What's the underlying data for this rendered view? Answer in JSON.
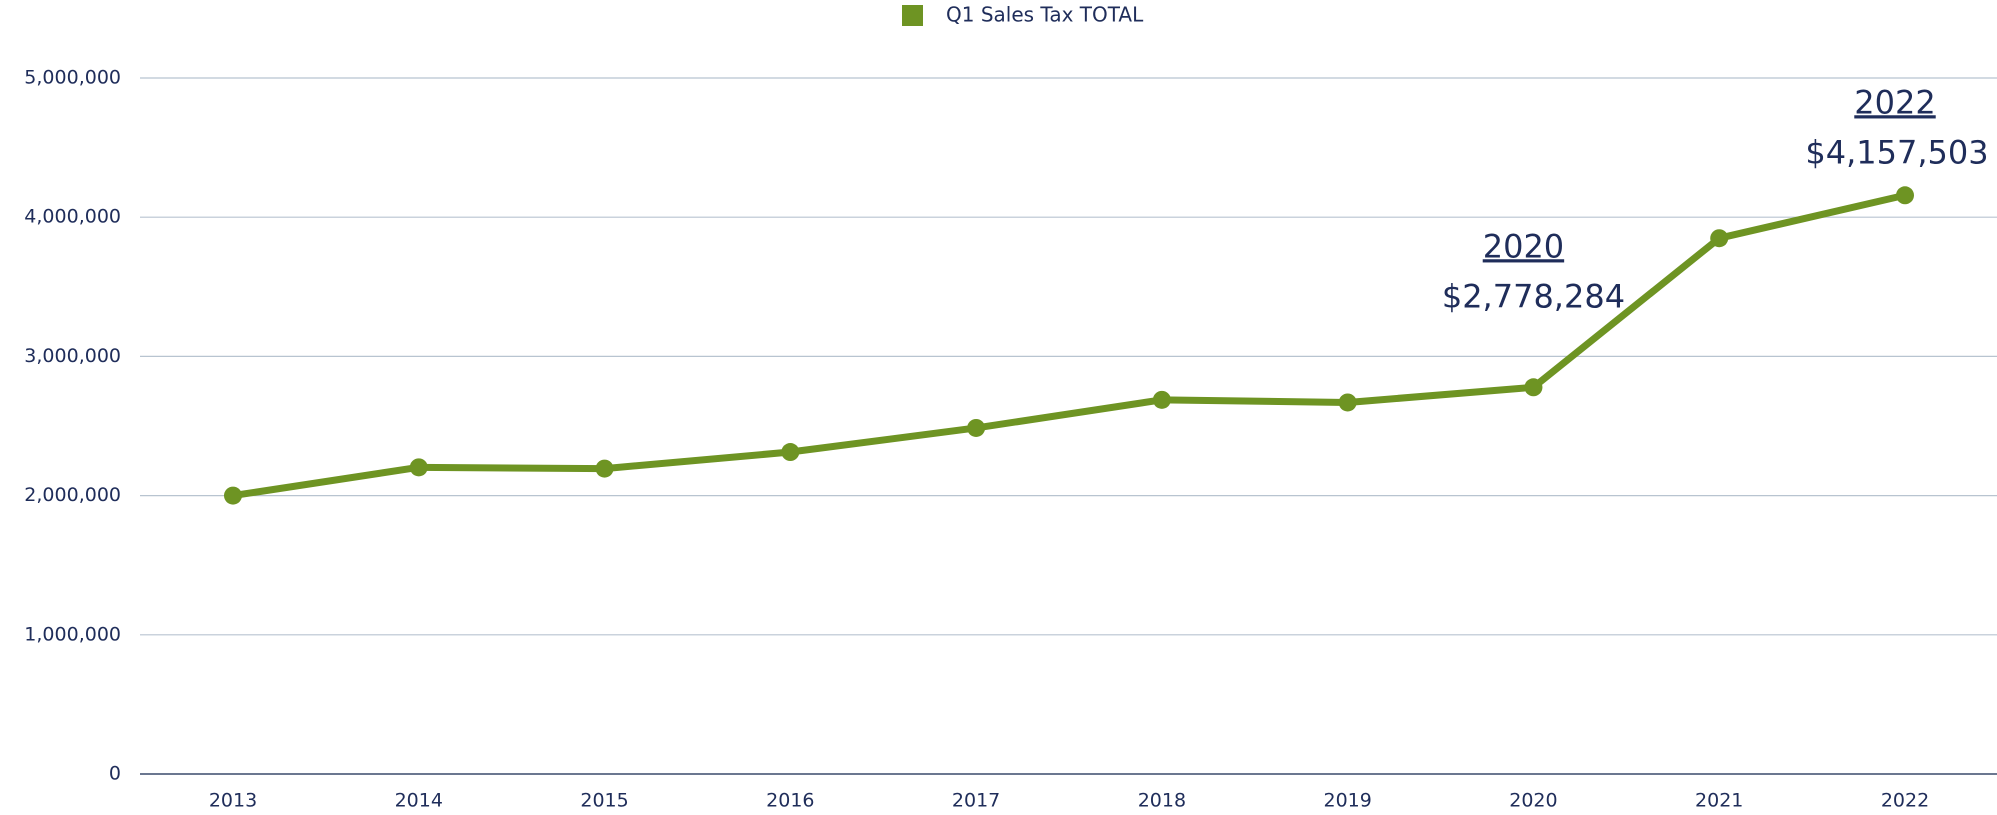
{
  "chart_data": {
    "type": "line",
    "categories": [
      "2013",
      "2014",
      "2015",
      "2016",
      "2017",
      "2018",
      "2019",
      "2020",
      "2021",
      "2022"
    ],
    "series": [
      {
        "name": "Q1 Sales Tax TOTAL",
        "color": "#6e9423",
        "values": [
          2000000,
          2203000,
          2194000,
          2313000,
          2486000,
          2688000,
          2669000,
          2778284,
          3849000,
          4157503
        ],
        "value_labels": [
          null,
          null,
          null,
          null,
          null,
          null,
          null,
          "$2,778,284",
          null,
          "$4,157,503"
        ]
      }
    ],
    "ylim": [
      0,
      5000000
    ],
    "yticks": [
      0,
      {
        "value": 1000000,
        "label": "1,000,000"
      },
      {
        "value": 2000000,
        "label": "2,000,000"
      },
      {
        "value": 3000000,
        "label": "3,000,000"
      },
      {
        "value": 4000000,
        "label": "4,000,000"
      },
      {
        "value": 5000000,
        "label": "5,000,000"
      }
    ],
    "grid": true,
    "legend": "top"
  }
}
